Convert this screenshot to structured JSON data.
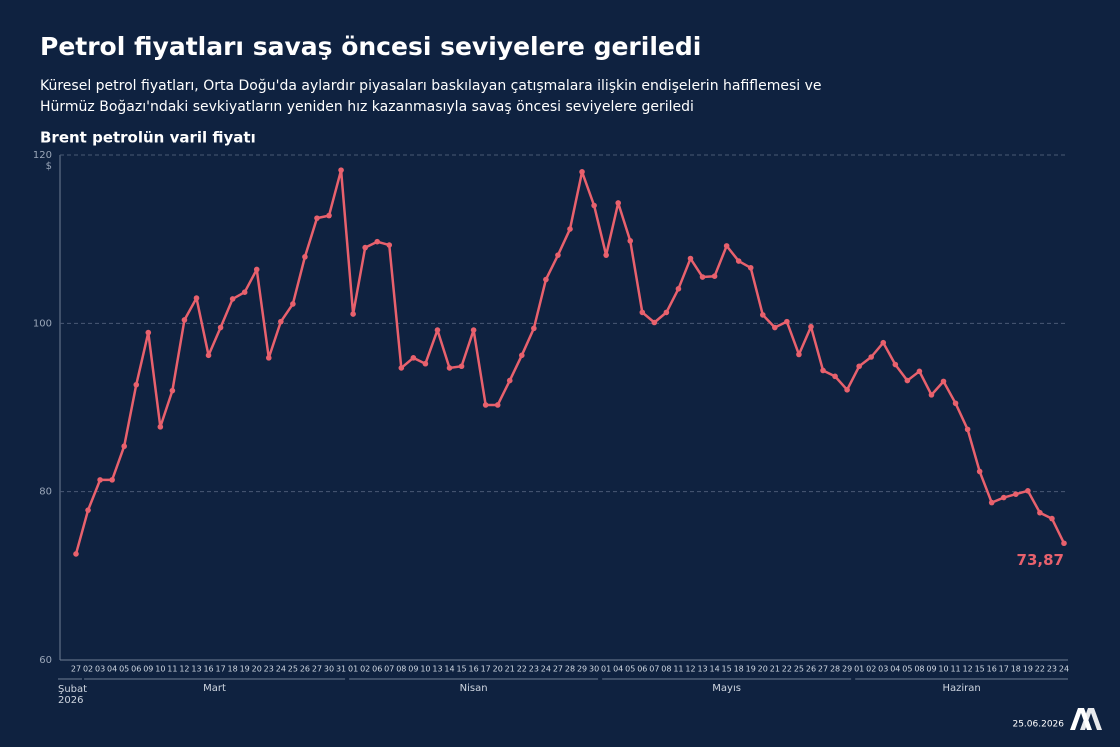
{
  "chart_data": {
    "type": "line",
    "title": "Petrol fiyatları savaş öncesi seviyelere geriledi",
    "subtitle": [
      "Küresel petrol fiyatları, Orta Doğu'da aylardır piyasaları baskılayan çatışmalara ilişkin endişelerin hafiflemesi ve",
      "Hürmüz Boğazı'ndaki sevkiyatların yeniden hız kazanmasıyla savaş öncesi seviyelere geriledi"
    ],
    "chart_title": "Brent petrolün varil fiyatı",
    "y_unit": "$",
    "categories": [
      "27",
      "02",
      "03",
      "04",
      "05",
      "06",
      "09",
      "10",
      "11",
      "12",
      "13",
      "16",
      "17",
      "18",
      "19",
      "20",
      "23",
      "24",
      "25",
      "26",
      "27",
      "30",
      "31",
      "01",
      "02",
      "06",
      "07",
      "08",
      "09",
      "10",
      "13",
      "14",
      "15",
      "16",
      "17",
      "20",
      "21",
      "22",
      "23",
      "24",
      "27",
      "28",
      "29",
      "30",
      "01",
      "04",
      "05",
      "06",
      "07",
      "08",
      "11",
      "12",
      "13",
      "14",
      "15",
      "18",
      "19",
      "20",
      "21",
      "22",
      "25",
      "26",
      "27",
      "28",
      "29",
      "01",
      "02",
      "03",
      "04",
      "05",
      "08",
      "09",
      "10",
      "11",
      "12",
      "15",
      "16",
      "17",
      "18",
      "19",
      "22",
      "23",
      "24"
    ],
    "groups": [
      {
        "label": "Şubat",
        "sublabel": "2026",
        "size": 1
      },
      {
        "label": "Mart",
        "size": 22
      },
      {
        "label": "Nisan",
        "size": 21
      },
      {
        "label": "Mayıs",
        "size": 21
      },
      {
        "label": "Haziran",
        "size": 18
      }
    ],
    "series": [
      {
        "name": "Brent",
        "color": "#e8616d",
        "values": [
          72.6,
          77.8,
          81.4,
          81.4,
          85.4,
          92.7,
          98.9,
          87.7,
          92.0,
          100.4,
          103.0,
          96.2,
          99.5,
          102.9,
          103.7,
          106.4,
          95.9,
          100.2,
          102.3,
          107.9,
          112.5,
          112.8,
          118.2,
          101.1,
          109.0,
          109.7,
          109.3,
          94.7,
          95.9,
          95.2,
          99.2,
          94.7,
          94.9,
          99.2,
          90.3,
          90.3,
          93.2,
          96.2,
          99.4,
          105.2,
          108.1,
          111.2,
          118.0,
          114.0,
          108.1,
          114.3,
          109.8,
          101.3,
          100.1,
          101.3,
          104.1,
          107.7,
          105.5,
          105.6,
          109.2,
          107.4,
          106.6,
          101.0,
          99.5,
          100.2,
          96.3,
          99.6,
          94.4,
          93.7,
          92.1,
          94.9,
          96.0,
          97.7,
          95.1,
          93.2,
          94.3,
          91.5,
          93.1,
          90.5,
          87.4,
          82.4,
          78.7,
          79.3,
          79.7,
          80.1,
          77.5,
          76.8,
          73.87
        ],
        "value_labels": [
          null,
          null,
          null,
          null,
          null,
          null,
          null,
          null,
          null,
          null,
          null,
          null,
          null,
          null,
          null,
          null,
          null,
          null,
          null,
          null,
          null,
          null,
          null,
          null,
          null,
          null,
          null,
          null,
          null,
          null,
          null,
          null,
          null,
          null,
          null,
          null,
          null,
          null,
          null,
          null,
          null,
          null,
          null,
          null,
          null,
          null,
          null,
          null,
          null,
          null,
          null,
          null,
          null,
          null,
          null,
          null,
          null,
          null,
          null,
          null,
          null,
          null,
          null,
          null,
          null,
          null,
          null,
          null,
          null,
          null,
          null,
          null,
          null,
          null,
          null,
          null,
          null,
          null,
          null,
          null,
          null,
          null,
          "73,87"
        ]
      }
    ],
    "ylim": [
      60,
      120
    ],
    "yticks": [
      60,
      80,
      100,
      120
    ],
    "grid": true,
    "footer_date": "25.06.2026"
  }
}
